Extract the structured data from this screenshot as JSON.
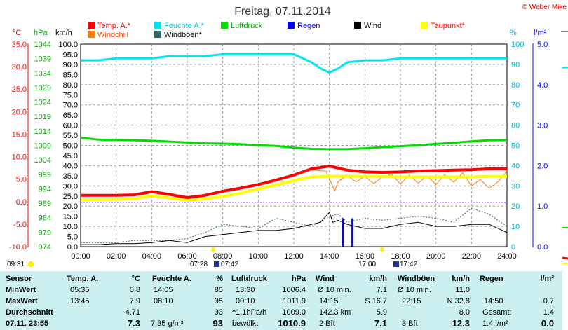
{
  "header": {
    "title": "Freitag, 07.11.2014",
    "copyright": "© Weber Mike"
  },
  "unit_labels": {
    "temp": "°C",
    "pressure": "hPa",
    "wind": "km/h",
    "humidity": "%",
    "rain": "l/m²"
  },
  "legend": [
    {
      "label": "Temp. A.*",
      "color": "#ff0000",
      "text_color": "#ff0000"
    },
    {
      "label": "Feuchte A.*",
      "color": "#00e5ee",
      "text_color": "#00d2dc"
    },
    {
      "label": "Luftdruck",
      "color": "#00dd00",
      "text_color": "#00aa00"
    },
    {
      "label": "Regen",
      "color": "#0000ff",
      "text_color": "#0000ff"
    },
    {
      "label": "Wind",
      "color": "#000000",
      "text_color": "#000000"
    },
    {
      "label": "Taupunkt*",
      "color": "#ffff00",
      "text_color": "#ff0000"
    },
    {
      "label": "Windchill",
      "color": "#ff8000",
      "text_color": "#ff4000"
    },
    {
      "label": "Windböen*",
      "color": "#336666",
      "text_color": "#000000"
    }
  ],
  "axes": {
    "temp_ticks": [
      "35.0",
      "30.0",
      "25.0",
      "20.0",
      "15.0",
      "10.0",
      "5.0",
      "0.0",
      "-5.0",
      "-10.0"
    ],
    "pressure_ticks": [
      "1044",
      "1039",
      "1034",
      "1029",
      "1024",
      "1019",
      "1014",
      "1009",
      "1004",
      "999",
      "994",
      "989",
      "984",
      "979",
      "974"
    ],
    "wind_ticks": [
      "100.0",
      "95.0",
      "90.0",
      "85.0",
      "80.0",
      "75.0",
      "70.0",
      "65.0",
      "60.0",
      "55.0",
      "50.0",
      "45.0",
      "40.0",
      "35.0",
      "30.0",
      "25.0",
      "20.0",
      "15.0",
      "10.0",
      "5.0",
      "0.0"
    ],
    "humidity_ticks": [
      "100",
      "90",
      "80",
      "70",
      "60",
      "50",
      "40",
      "30",
      "20",
      "10",
      "0"
    ],
    "rain_ticks": [
      "5.0",
      "4.0",
      "3.0",
      "2.0",
      "1.0",
      "0.0"
    ],
    "time_ticks": [
      "00:00",
      "02:00",
      "04:00",
      "06:00",
      "08:00",
      "10:00",
      "12:00",
      "14:00",
      "16:00",
      "18:00",
      "20:00",
      "22:00",
      "24:00"
    ]
  },
  "sun_times": {
    "left": "09:31",
    "sunrise": "07:28",
    "sunrise2": "07:42",
    "sunset": "17:00",
    "sunset2": "17:42"
  },
  "chart_data": {
    "type": "line",
    "title": "Freitag, 07.11.2014",
    "x_range_hours": [
      0,
      24
    ],
    "ylim_wind_kmh": [
      0,
      100
    ],
    "ylim_temp_c": [
      -10,
      35
    ],
    "ylim_pressure_hpa": [
      974,
      1044
    ],
    "ylim_humidity_pct": [
      0,
      100
    ],
    "ylim_rain_lm2": [
      0,
      5
    ],
    "grid": true,
    "series": [
      {
        "name": "Temp. A.*",
        "axis": "temp",
        "color": "#ff0000",
        "width": 4,
        "x": [
          0,
          2,
          3,
          4,
          5,
          6,
          7,
          8,
          9,
          10,
          11,
          12,
          13,
          14,
          15,
          16,
          17,
          18,
          19,
          20,
          21,
          22,
          23,
          24
        ],
        "y": [
          1.4,
          1.4,
          1.5,
          2.2,
          1.6,
          0.9,
          1.4,
          2.3,
          3.0,
          3.8,
          4.8,
          5.9,
          7.3,
          7.9,
          7.0,
          6.6,
          6.5,
          6.6,
          6.8,
          6.9,
          7.0,
          7.1,
          7.3,
          7.3
        ]
      },
      {
        "name": "Taupunkt*",
        "axis": "temp",
        "color": "#ffff00",
        "width": 4,
        "x": [
          0,
          2,
          3,
          4,
          5,
          6,
          7,
          8,
          9,
          10,
          11,
          12,
          13,
          14,
          15,
          16,
          17,
          18,
          19,
          20,
          21,
          22,
          23,
          24
        ],
        "y": [
          0.4,
          0.5,
          0.6,
          1.3,
          0.8,
          0.3,
          0.6,
          1.2,
          1.9,
          2.8,
          3.7,
          4.7,
          5.5,
          5.6,
          5.7,
          5.6,
          5.6,
          5.5,
          5.5,
          5.5,
          5.5,
          5.5,
          5.6,
          5.6
        ]
      },
      {
        "name": "Windchill",
        "axis": "temp",
        "color": "#ff8000",
        "width": 1,
        "x": [
          13,
          13.8,
          14.1,
          14.3,
          14.5,
          15,
          15.5,
          16,
          16.5,
          17,
          17.5,
          18,
          18.5,
          19,
          19.5,
          20,
          20.5,
          21,
          21.5,
          22,
          22.5,
          23,
          23.5,
          24
        ],
        "y": [
          7.0,
          6.8,
          4.2,
          2.4,
          4.5,
          5.8,
          4.4,
          5.6,
          4.0,
          5.5,
          6.1,
          3.9,
          5.9,
          4.1,
          5.7,
          3.8,
          6.0,
          4.3,
          6.4,
          3.5,
          4.9,
          3.0,
          4.4,
          6.8
        ]
      },
      {
        "name": "Feuchte A.*",
        "axis": "humidity",
        "color": "#00e5ee",
        "width": 3,
        "x": [
          0,
          1,
          2,
          3,
          4,
          5,
          6,
          7,
          8,
          9,
          10,
          11,
          12,
          13,
          13.5,
          14,
          14.5,
          15,
          16,
          17,
          18,
          19,
          20,
          21,
          22,
          23,
          24
        ],
        "y": [
          92,
          92,
          93,
          93,
          93,
          94,
          94,
          94,
          95,
          95,
          95,
          95,
          95,
          91,
          88,
          86,
          88,
          91,
          92,
          92,
          93,
          93,
          93,
          93,
          93,
          93,
          93
        ]
      },
      {
        "name": "Luftdruck",
        "axis": "pressure",
        "color": "#00dd00",
        "width": 3,
        "x": [
          0,
          1,
          2,
          3,
          4,
          5,
          6,
          7,
          8,
          9,
          10,
          11,
          12,
          13,
          14,
          15,
          16,
          17,
          18,
          19,
          20,
          21,
          22,
          23,
          24
        ],
        "y": [
          1011.7,
          1011.0,
          1010.9,
          1010.8,
          1010.6,
          1010.3,
          1010.0,
          1009.7,
          1009.6,
          1009.4,
          1009.1,
          1008.8,
          1008.2,
          1007.8,
          1007.7,
          1007.7,
          1008.0,
          1008.4,
          1008.7,
          1009.1,
          1009.5,
          1009.9,
          1010.4,
          1010.8,
          1010.8
        ]
      },
      {
        "name": "Wind",
        "axis": "wind",
        "color": "#000000",
        "width": 1,
        "x": [
          0,
          1,
          2,
          3,
          4,
          5,
          6,
          7,
          8,
          9,
          10,
          11,
          12,
          13,
          13.5,
          14,
          14.2,
          14.5,
          15,
          15.5,
          16,
          17,
          18,
          19,
          20,
          21,
          22,
          23,
          24
        ],
        "y": [
          1,
          1,
          1.5,
          1.5,
          2,
          3,
          2,
          5,
          6,
          7,
          8,
          8,
          9,
          11,
          12,
          17,
          12,
          13,
          11,
          10,
          9,
          9,
          11,
          12,
          10,
          10,
          11,
          11,
          7
        ]
      },
      {
        "name": "Windböen*",
        "axis": "wind",
        "color": "#336666",
        "width": 1,
        "dashed": true,
        "x": [
          0,
          1,
          2,
          3,
          4,
          5,
          6,
          7,
          8,
          9,
          10,
          11,
          12,
          13,
          14,
          14.5,
          15,
          16,
          17,
          18,
          19,
          20,
          21,
          22,
          23,
          24
        ],
        "y": [
          2,
          2,
          2,
          3,
          3,
          3,
          4,
          7,
          11,
          10,
          9,
          14,
          12,
          10,
          15,
          16,
          12,
          14,
          13,
          14,
          15,
          14,
          12,
          19,
          16,
          10
        ]
      },
      {
        "name": "Regen",
        "axis": "rain",
        "color": "#0000ff",
        "width": 2,
        "type": "bar",
        "x": [
          14.75,
          15.3
        ],
        "y": [
          0.7,
          0.7
        ]
      }
    ]
  },
  "stats": {
    "headers": [
      "Sensor",
      "Temp. A.",
      "°C",
      "Feuchte A.",
      "%",
      "Luftdruck",
      "hPa",
      "Wind",
      "km/h",
      "Windböen",
      "km/h",
      "Regen",
      "l/m²"
    ],
    "row_labels": [
      "MinWert",
      "MaxWert",
      "Durchschnitt",
      "07.11. 23:55"
    ],
    "temp": [
      [
        "05:35",
        "0.8"
      ],
      [
        "13:45",
        "7.9"
      ],
      [
        "",
        "4.71"
      ],
      [
        "",
        "7.3"
      ]
    ],
    "feuchte": [
      [
        "14:05",
        "85"
      ],
      [
        "08:10",
        "95"
      ],
      [
        "",
        "93"
      ],
      [
        "7.35 g/m³",
        "93"
      ]
    ],
    "luftdruck": [
      [
        "13:30",
        "1006.4"
      ],
      [
        "00:10",
        "1011.9"
      ],
      [
        "^1.1hPa/h",
        "1009.0"
      ],
      [
        "bewölkt",
        "1010.9"
      ]
    ],
    "wind": [
      [
        "Ø 10 min.",
        "7.1"
      ],
      [
        "14:15",
        "S 16.7"
      ],
      [
        "142.3 km",
        "5.9"
      ],
      [
        "2 Bft",
        "7.1"
      ]
    ],
    "windboeen": [
      [
        "Ø 10 min.",
        "11.0"
      ],
      [
        "22:15",
        "N 32.8"
      ],
      [
        "",
        "8.0"
      ],
      [
        "3 Bft",
        "12.3"
      ]
    ],
    "regen": [
      [
        "",
        ""
      ],
      [
        "14:50",
        "0.7"
      ],
      [
        "Gesamt:",
        "1.4"
      ],
      [
        "1.4 l/m²",
        "0.0"
      ]
    ]
  }
}
